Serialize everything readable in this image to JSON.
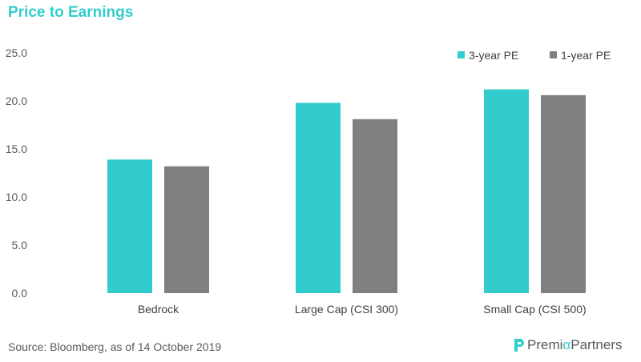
{
  "title": "Price to Earnings",
  "source": "Source: Bloomberg, as of 14 October 2019",
  "brand": {
    "part1": "Premi",
    "alpha": "α",
    "part2": "Partners"
  },
  "colors": {
    "accent": "#33cccc",
    "gray": "#7f7f7f",
    "text": "#595959"
  },
  "chart_data": {
    "type": "bar",
    "categories": [
      "Bedrock",
      "Large Cap (CSI 300)",
      "Small Cap (CSI 500)"
    ],
    "series": [
      {
        "name": "3-year PE",
        "color": "#33cccc",
        "values": [
          13.9,
          19.8,
          21.2
        ]
      },
      {
        "name": "1-year PE",
        "color": "#7f7f7f",
        "values": [
          13.2,
          18.1,
          20.6
        ]
      }
    ],
    "yticks": [
      "0.0",
      "5.0",
      "10.0",
      "15.0",
      "20.0",
      "25.0"
    ],
    "ylim": [
      0,
      25
    ],
    "grid": false,
    "legend": "top-right"
  }
}
